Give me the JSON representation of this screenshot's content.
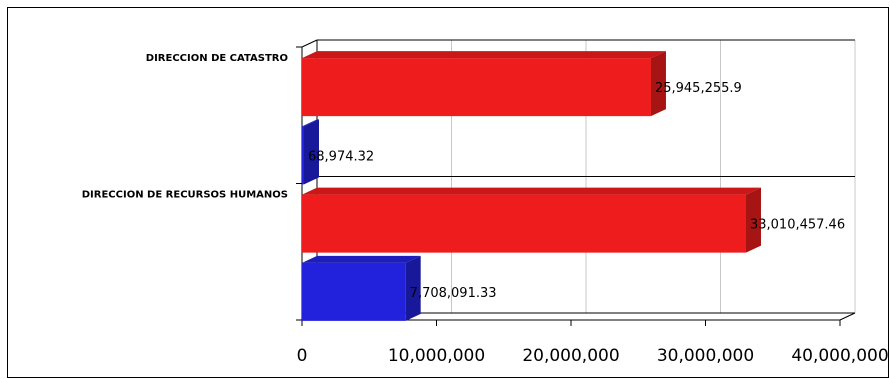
{
  "chart_data": {
    "type": "bar",
    "orientation": "horizontal",
    "categories": [
      "DIRECCION DE CATASTRO",
      "DIRECCION DE RECURSOS HUMANOS"
    ],
    "series": [
      {
        "color": "#ee1c1c",
        "values": [
          25945255.9,
          33010457.46
        ],
        "labels": [
          "25,945,255.9",
          "33,010,457.46"
        ]
      },
      {
        "color": "#2222dd",
        "values": [
          68974.32,
          7708091.33
        ],
        "labels": [
          "68,974.32",
          "7,708,091.33"
        ]
      }
    ],
    "xlim": [
      0,
      40000000
    ],
    "xticks": [
      0,
      10000000,
      20000000,
      30000000,
      40000000
    ],
    "xtick_labels": [
      "0",
      "10,000,000",
      "20,000,000",
      "30,000,000",
      "40,000,000"
    ],
    "grid": true,
    "legend": "none",
    "style": "3d"
  }
}
